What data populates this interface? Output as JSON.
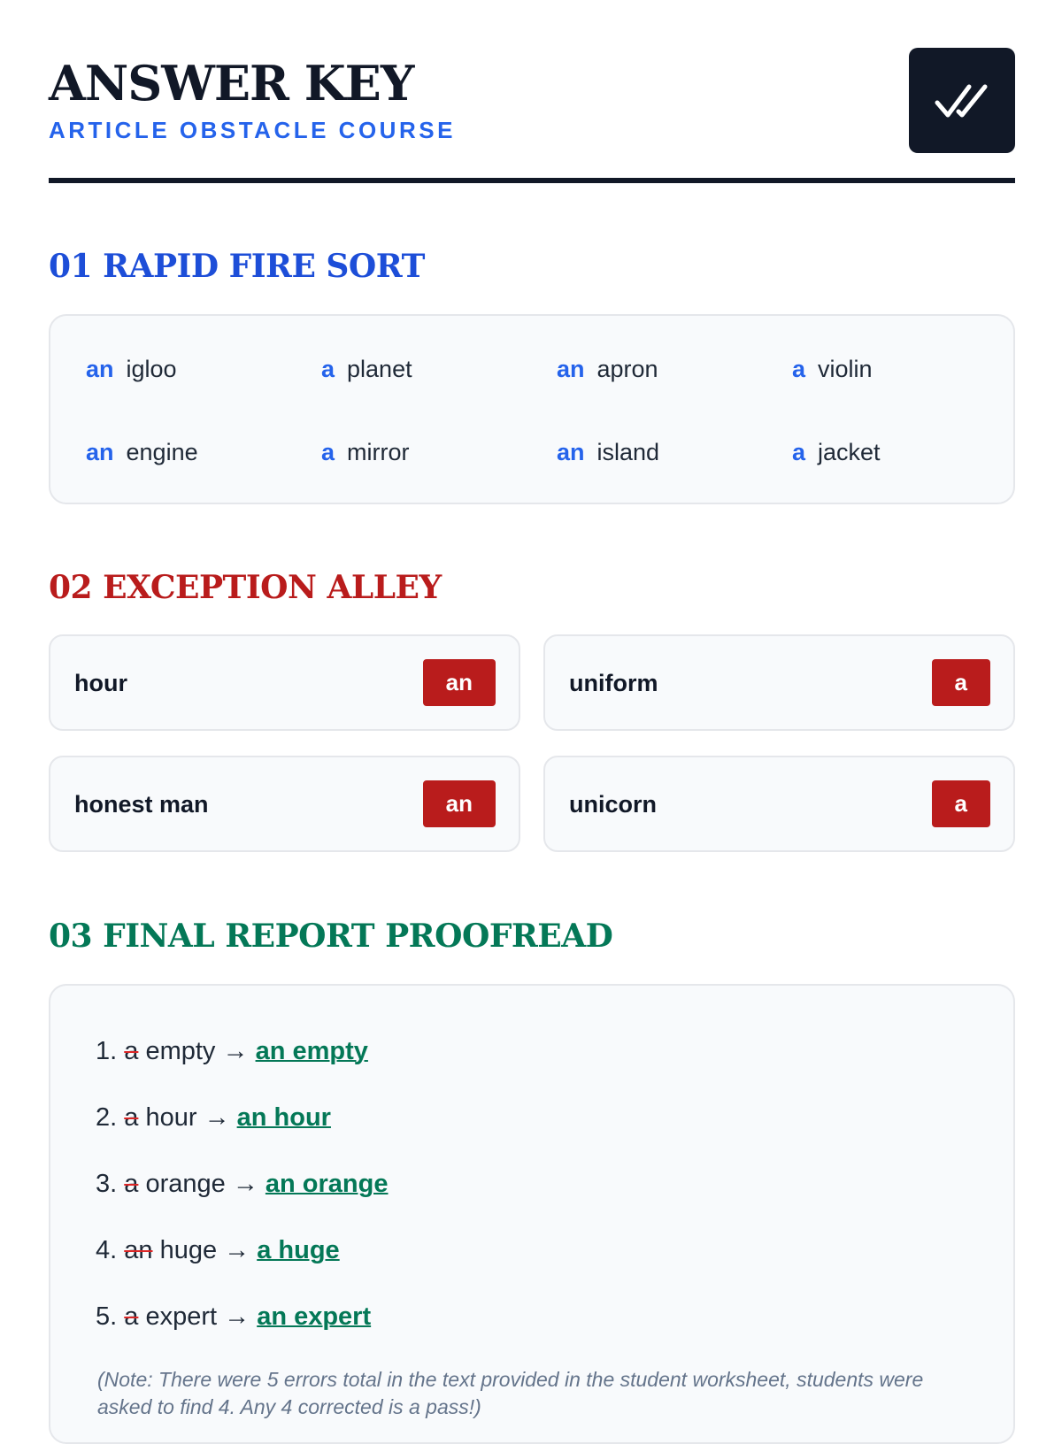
{
  "header": {
    "title": "ANSWER KEY",
    "subtitle": "ARTICLE OBSTACLE COURSE",
    "icon": "double-check-icon"
  },
  "colors": {
    "dark": "#111827",
    "blue": "#1d4ed8",
    "red": "#b91c1c",
    "green": "#047857"
  },
  "section1": {
    "heading": "01 RAPID FIRE SORT",
    "items": [
      {
        "article": "an",
        "word": "igloo"
      },
      {
        "article": "a",
        "word": "planet"
      },
      {
        "article": "an",
        "word": "apron"
      },
      {
        "article": "a",
        "word": "violin"
      },
      {
        "article": "an",
        "word": "engine"
      },
      {
        "article": "a",
        "word": "mirror"
      },
      {
        "article": "an",
        "word": "island"
      },
      {
        "article": "a",
        "word": "jacket"
      }
    ]
  },
  "section2": {
    "heading": "02 EXCEPTION ALLEY",
    "items": [
      {
        "word": "hour",
        "answer": "an"
      },
      {
        "word": "uniform",
        "answer": "a"
      },
      {
        "word": "honest man",
        "answer": "an"
      },
      {
        "word": "unicorn",
        "answer": "a"
      }
    ]
  },
  "section3": {
    "heading": "03 FINAL REPORT PROOFREAD",
    "items": [
      {
        "num": "1.",
        "wrong": "a",
        "word": "empty",
        "arrow": "→",
        "fix": "an empty"
      },
      {
        "num": "2.",
        "wrong": "a",
        "word": "hour",
        "arrow": "→",
        "fix": "an hour"
      },
      {
        "num": "3.",
        "wrong": "a",
        "word": "orange",
        "arrow": "→",
        "fix": "an orange"
      },
      {
        "num": "4.",
        "wrong": "an",
        "word": "huge",
        "arrow": "→",
        "fix": "a huge"
      },
      {
        "num": "5.",
        "wrong": "a",
        "word": "expert",
        "arrow": "→",
        "fix": "an expert"
      }
    ],
    "note": "(Note: There were 5 errors total in the text provided in the student worksheet, students were asked to find 4. Any 4 corrected is a pass!)"
  }
}
